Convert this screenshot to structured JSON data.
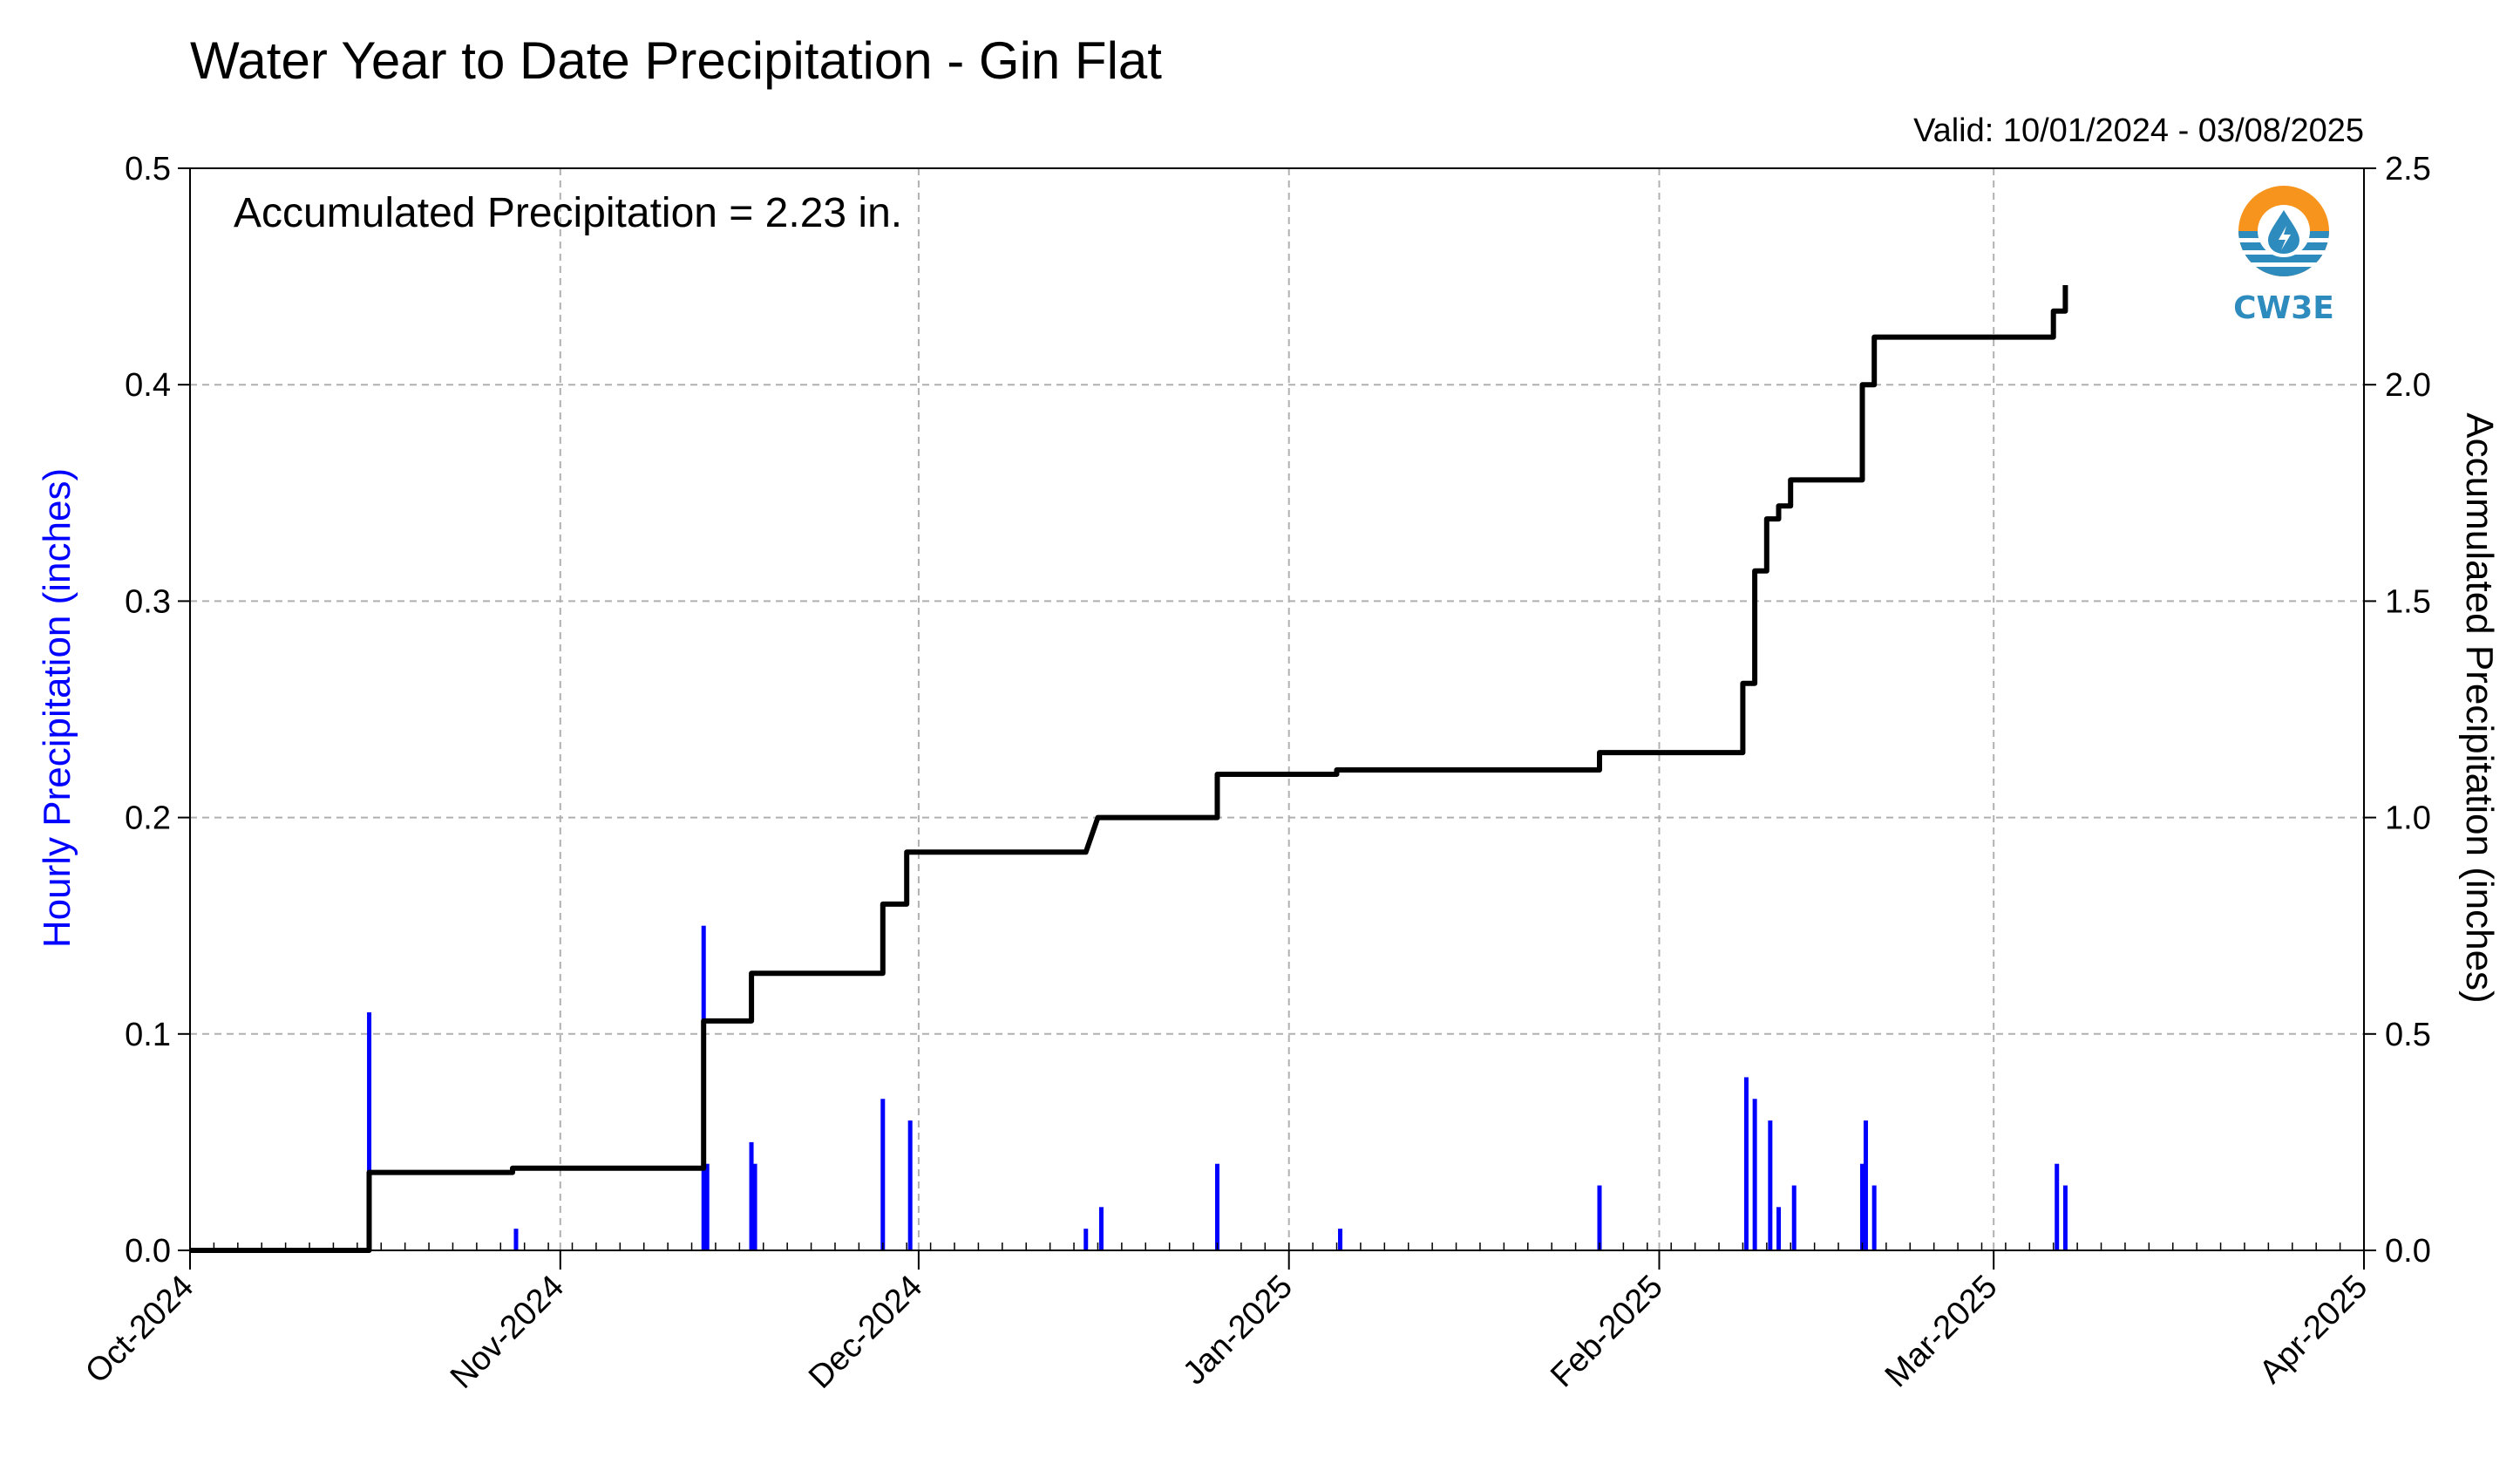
{
  "chart_data": {
    "type": "bar+line",
    "title": "Water Year to Date Precipitation - Gin Flat",
    "valid_text": "Valid: 10/01/2024 - 03/08/2025",
    "annotation": "Accumulated Precipitation = 2.23 in.",
    "logo_text": "CW3E",
    "x_axis": {
      "start": "2024-10-01",
      "end": "2025-04-01",
      "tick_labels": [
        "Oct-2024",
        "Nov-2024",
        "Dec-2024",
        "Jan-2025",
        "Feb-2025",
        "Mar-2025",
        "Apr-2025"
      ],
      "tick_dates": [
        "2024-10-01",
        "2024-11-01",
        "2024-12-01",
        "2025-01-01",
        "2025-02-01",
        "2025-03-01",
        "2025-04-01"
      ]
    },
    "y_left": {
      "label": "Hourly Precipitation (inches)",
      "ylim": [
        0,
        0.5
      ],
      "ticks": [
        0.0,
        0.1,
        0.2,
        0.3,
        0.4,
        0.5
      ],
      "tick_labels": [
        "0.0",
        "0.1",
        "0.2",
        "0.3",
        "0.4",
        "0.5"
      ],
      "color": "#0000ff"
    },
    "y_right": {
      "label": "Accumulated Precipitation (inches)",
      "ylim": [
        0,
        2.5
      ],
      "ticks": [
        0.0,
        0.5,
        1.0,
        1.5,
        2.0,
        2.5
      ],
      "tick_labels": [
        "0.0",
        "0.5",
        "1.0",
        "1.5",
        "2.0",
        "2.5"
      ]
    },
    "grid": true,
    "series": [
      {
        "name": "Hourly Precipitation",
        "type": "bar",
        "axis": "left",
        "color": "#0000ff",
        "points": [
          [
            "2024-10-16",
            0.11
          ],
          [
            "2024-10-28",
            0.01
          ],
          [
            "2024-11-13",
            0.15
          ],
          [
            "2024-11-13",
            0.04
          ],
          [
            "2024-11-17",
            0.05
          ],
          [
            "2024-11-17",
            0.04
          ],
          [
            "2024-11-28",
            0.07
          ],
          [
            "2024-11-30",
            0.06
          ],
          [
            "2024-12-15",
            0.01
          ],
          [
            "2024-12-16",
            0.02
          ],
          [
            "2024-12-26",
            0.04
          ],
          [
            "2025-01-05",
            0.01
          ],
          [
            "2025-01-27",
            0.03
          ],
          [
            "2025-02-08",
            0.08
          ],
          [
            "2025-02-09",
            0.07
          ],
          [
            "2025-02-10",
            0.06
          ],
          [
            "2025-02-11",
            0.02
          ],
          [
            "2025-02-12",
            0.03
          ],
          [
            "2025-02-18",
            0.04
          ],
          [
            "2025-02-18",
            0.06
          ],
          [
            "2025-02-19",
            0.03
          ],
          [
            "2025-03-06",
            0.04
          ],
          [
            "2025-03-07",
            0.03
          ]
        ]
      },
      {
        "name": "Accumulated Precipitation",
        "type": "line",
        "axis": "right",
        "color": "#000000",
        "points": [
          [
            "2024-10-01",
            0.0
          ],
          [
            "2024-10-16",
            0.0
          ],
          [
            "2024-10-16",
            0.18
          ],
          [
            "2024-10-28",
            0.18
          ],
          [
            "2024-10-28",
            0.19
          ],
          [
            "2024-11-13",
            0.19
          ],
          [
            "2024-11-13",
            0.53
          ],
          [
            "2024-11-17",
            0.53
          ],
          [
            "2024-11-17",
            0.64
          ],
          [
            "2024-11-28",
            0.64
          ],
          [
            "2024-11-28",
            0.8
          ],
          [
            "2024-11-30",
            0.8
          ],
          [
            "2024-11-30",
            0.92
          ],
          [
            "2024-12-15",
            0.92
          ],
          [
            "2024-12-16",
            1.0
          ],
          [
            "2024-12-26",
            1.0
          ],
          [
            "2024-12-26",
            1.1
          ],
          [
            "2025-01-05",
            1.1
          ],
          [
            "2025-01-05",
            1.11
          ],
          [
            "2025-01-27",
            1.11
          ],
          [
            "2025-01-27",
            1.15
          ],
          [
            "2025-02-08",
            1.15
          ],
          [
            "2025-02-08",
            1.31
          ],
          [
            "2025-02-09",
            1.31
          ],
          [
            "2025-02-09",
            1.57
          ],
          [
            "2025-02-10",
            1.57
          ],
          [
            "2025-02-10",
            1.69
          ],
          [
            "2025-02-11",
            1.69
          ],
          [
            "2025-02-11",
            1.72
          ],
          [
            "2025-02-12",
            1.72
          ],
          [
            "2025-02-12",
            1.78
          ],
          [
            "2025-02-18",
            1.78
          ],
          [
            "2025-02-18",
            2.0
          ],
          [
            "2025-02-19",
            2.0
          ],
          [
            "2025-02-19",
            2.11
          ],
          [
            "2025-03-06",
            2.11
          ],
          [
            "2025-03-06",
            2.17
          ],
          [
            "2025-03-07",
            2.17
          ],
          [
            "2025-03-07",
            2.23
          ]
        ]
      }
    ]
  }
}
